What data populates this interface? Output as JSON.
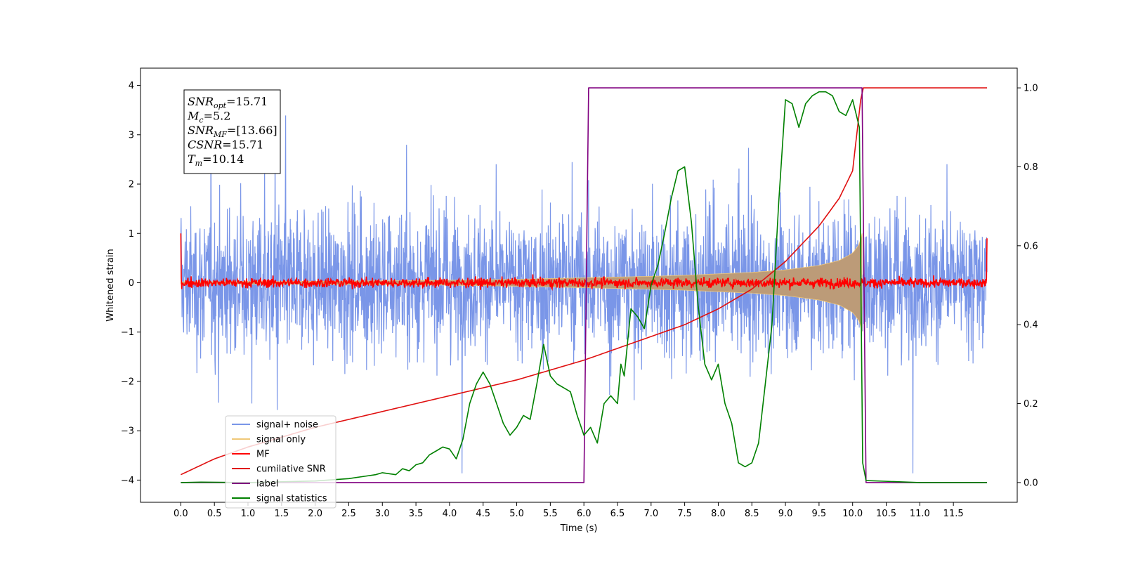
{
  "chart_data": {
    "type": "line",
    "xlabel": "Time (s)",
    "ylabel": "Whitened strain",
    "xlim": [
      -0.6,
      12.45
    ],
    "ylim_left": [
      -4.45,
      4.35
    ],
    "ylim_right": [
      -0.05,
      1.05
    ],
    "x_ticks": [
      0.0,
      0.5,
      1.0,
      1.5,
      2.0,
      2.5,
      3.0,
      3.5,
      4.0,
      4.5,
      5.0,
      5.5,
      6.0,
      6.5,
      7.0,
      7.5,
      8.0,
      8.5,
      9.0,
      9.5,
      10.0,
      10.5,
      11.0,
      11.5
    ],
    "x_tick_labels": [
      "0.0",
      "0.5",
      "1.0",
      "1.5",
      "2.0",
      "2.5",
      "3.0",
      "3.5",
      "4.0",
      "4.5",
      "5.0",
      "5.5",
      "6.0",
      "6.5",
      "7.0",
      "7.5",
      "8.0",
      "8.5",
      "9.0",
      "9.5",
      "10.0",
      "10.5",
      "11.0",
      "11.5"
    ],
    "y_left_ticks": [
      -4,
      -3,
      -2,
      -1,
      0,
      1,
      2,
      3,
      4
    ],
    "y_left_tick_labels": [
      "−4",
      "−3",
      "−2",
      "−1",
      "0",
      "1",
      "2",
      "3",
      "4"
    ],
    "y_right_ticks": [
      0.0,
      0.2,
      0.4,
      0.6,
      0.8,
      1.0
    ],
    "y_right_tick_labels": [
      "0.0",
      "0.2",
      "0.4",
      "0.6",
      "0.8",
      "1.0"
    ],
    "grid": false,
    "legend_placement": "lower-left",
    "annotation": [
      {
        "sym": "SNR",
        "sub": "opt",
        "rest": "=15.71"
      },
      {
        "sym": "M",
        "sub": "c",
        "rest": "=5.2"
      },
      {
        "sym": "SNR",
        "sub": "MF",
        "rest": "=[13.66]"
      },
      {
        "sym": "CSNR",
        "sub": "",
        "rest": "=15.71"
      },
      {
        "sym": "T",
        "sub": "m",
        "rest": "=10.14"
      }
    ],
    "series": [
      {
        "name": "signal+ noise",
        "axis": "left",
        "color": "#7a96e8",
        "noise_sigma": 1.0,
        "x_range": [
          0.0,
          12.0
        ]
      },
      {
        "name": "signal only",
        "axis": "left",
        "color": "#f0c878",
        "fill_color": "#bc9b78",
        "envelope_x": [
          0.0,
          2.0,
          4.0,
          5.0,
          6.0,
          7.0,
          7.5,
          8.0,
          8.5,
          9.0,
          9.5,
          9.8,
          10.0,
          10.1,
          10.14
        ],
        "envelope_y": [
          0.02,
          0.03,
          0.05,
          0.07,
          0.1,
          0.13,
          0.15,
          0.18,
          0.21,
          0.26,
          0.35,
          0.45,
          0.6,
          0.78,
          1.0
        ]
      },
      {
        "name": "MF",
        "axis": "left",
        "color": "#ff0000",
        "noise_sigma": 0.05
      },
      {
        "name": "cumilative SNR",
        "axis": "right",
        "color": "#e01010",
        "x": [
          0.0,
          0.5,
          1.0,
          2.0,
          3.0,
          4.0,
          5.0,
          6.0,
          6.5,
          7.0,
          7.5,
          8.0,
          8.5,
          9.0,
          9.5,
          9.8,
          10.0,
          10.14,
          12.0
        ],
        "y": [
          0.02,
          0.06,
          0.09,
          0.14,
          0.18,
          0.22,
          0.26,
          0.31,
          0.34,
          0.37,
          0.4,
          0.44,
          0.49,
          0.56,
          0.65,
          0.72,
          0.79,
          1.0,
          1.0
        ]
      },
      {
        "name": "label",
        "axis": "right",
        "color": "#800080",
        "x": [
          0.0,
          6.0,
          6.07,
          10.14,
          10.2,
          12.0
        ],
        "y": [
          0.0,
          0.0,
          1.0,
          1.0,
          0.0,
          0.0
        ]
      },
      {
        "name": "signal statistics",
        "axis": "right",
        "color": "#008000",
        "x": [
          0.0,
          0.3,
          1.0,
          1.5,
          2.0,
          2.5,
          2.7,
          2.9,
          3.0,
          3.2,
          3.3,
          3.4,
          3.5,
          3.6,
          3.7,
          3.8,
          3.9,
          4.0,
          4.1,
          4.2,
          4.3,
          4.4,
          4.5,
          4.6,
          4.7,
          4.8,
          4.9,
          5.0,
          5.1,
          5.2,
          5.3,
          5.4,
          5.5,
          5.6,
          5.7,
          5.8,
          5.9,
          6.0,
          6.1,
          6.2,
          6.3,
          6.4,
          6.5,
          6.55,
          6.6,
          6.7,
          6.8,
          6.9,
          7.0,
          7.1,
          7.2,
          7.3,
          7.4,
          7.5,
          7.6,
          7.7,
          7.8,
          7.9,
          8.0,
          8.1,
          8.2,
          8.3,
          8.4,
          8.5,
          8.6,
          8.7,
          8.8,
          8.9,
          9.0,
          9.1,
          9.2,
          9.3,
          9.4,
          9.5,
          9.6,
          9.7,
          9.8,
          9.9,
          10.0,
          10.1,
          10.15,
          10.2,
          11.0,
          12.0
        ],
        "y": [
          0.0,
          0.001,
          0.0,
          0.002,
          0.004,
          0.01,
          0.015,
          0.02,
          0.025,
          0.02,
          0.035,
          0.03,
          0.045,
          0.05,
          0.07,
          0.08,
          0.09,
          0.085,
          0.06,
          0.11,
          0.2,
          0.25,
          0.28,
          0.25,
          0.2,
          0.15,
          0.12,
          0.14,
          0.17,
          0.16,
          0.25,
          0.35,
          0.27,
          0.25,
          0.24,
          0.23,
          0.17,
          0.12,
          0.14,
          0.1,
          0.2,
          0.22,
          0.2,
          0.3,
          0.27,
          0.44,
          0.42,
          0.39,
          0.5,
          0.55,
          0.63,
          0.72,
          0.79,
          0.8,
          0.66,
          0.45,
          0.3,
          0.26,
          0.3,
          0.2,
          0.15,
          0.05,
          0.04,
          0.05,
          0.1,
          0.25,
          0.4,
          0.71,
          0.97,
          0.96,
          0.9,
          0.96,
          0.98,
          0.99,
          0.99,
          0.98,
          0.94,
          0.93,
          0.97,
          0.9,
          0.05,
          0.005,
          0.0,
          0.0
        ]
      }
    ]
  }
}
